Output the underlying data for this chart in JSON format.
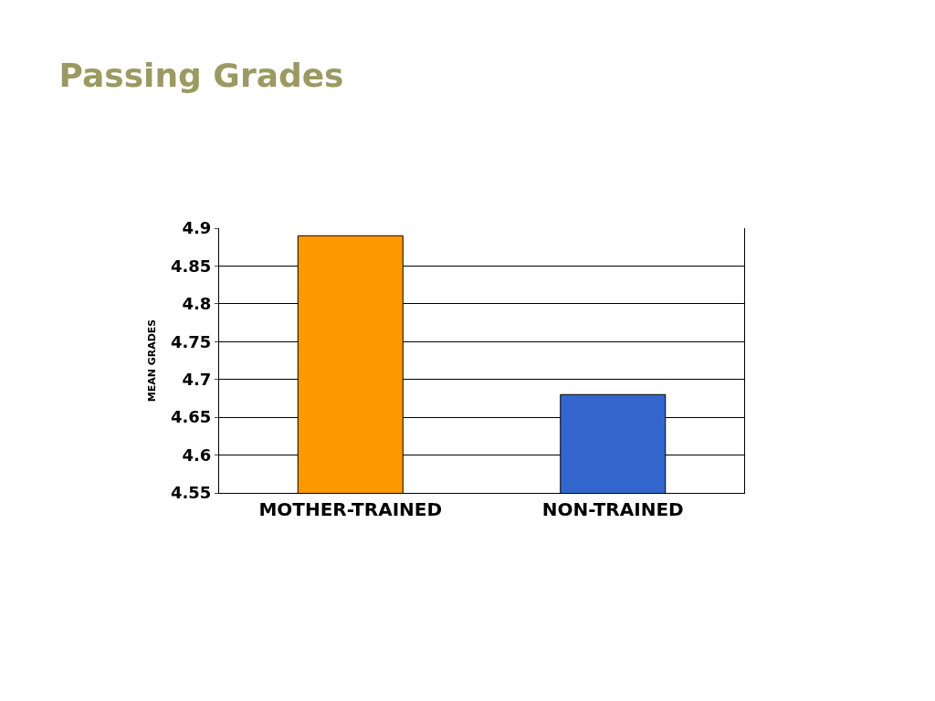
{
  "chart_data": {
    "type": "bar",
    "title": "Passing Grades",
    "ylabel": "MEAN GRADES",
    "categories": [
      "MOTHER-TRAINED",
      "NON-TRAINED"
    ],
    "values": [
      4.89,
      4.68
    ],
    "colors": [
      "#ff9900",
      "#3366cc"
    ],
    "ylim": [
      4.55,
      4.9
    ],
    "yticks": [
      4.55,
      4.6,
      4.65,
      4.7,
      4.75,
      4.8,
      4.85,
      4.9
    ],
    "grid": "y"
  }
}
